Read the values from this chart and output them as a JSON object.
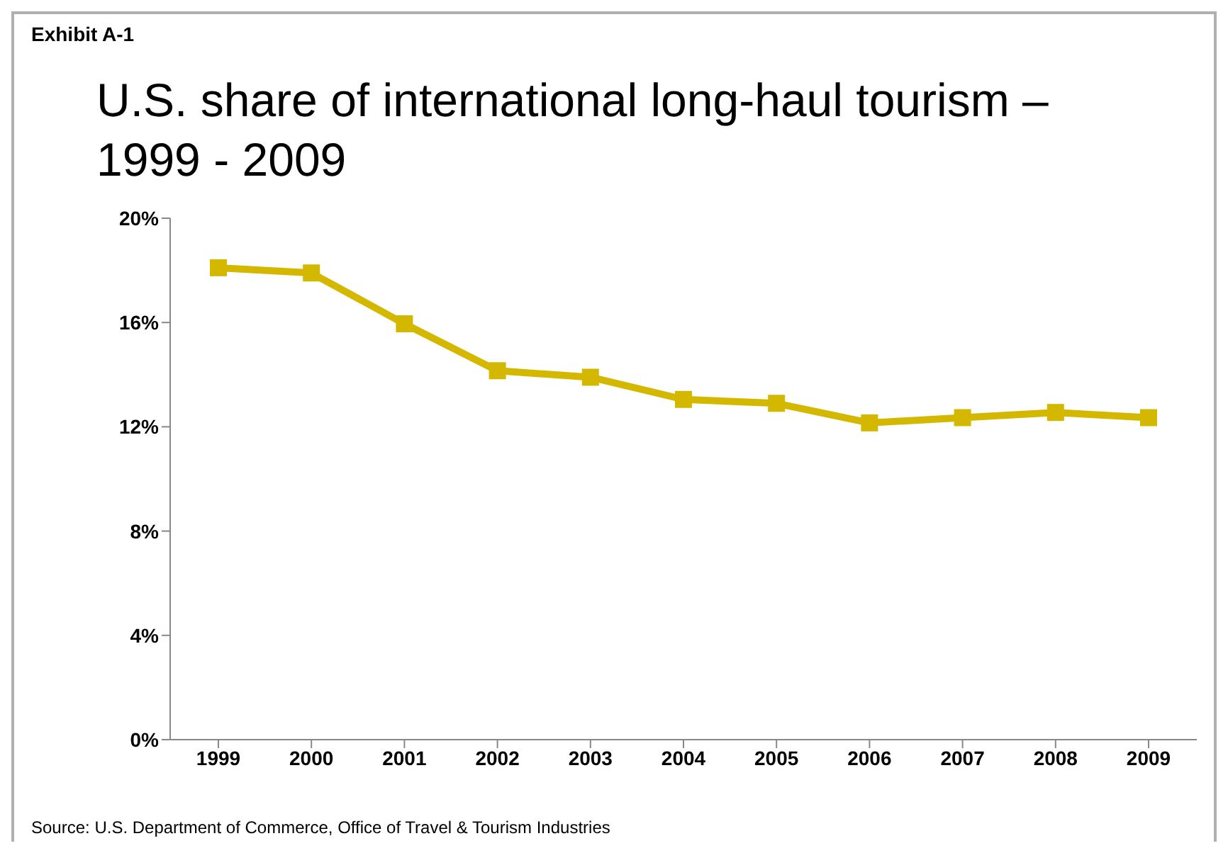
{
  "chart_data": {
    "type": "line",
    "title": "U.S. share of international long-haul tourism – 1999 - 2009",
    "annotations": [
      "Exhibit A-1",
      "Source:  U.S. Department of Commerce, Office of Travel & Tourism Industries"
    ],
    "categories": [
      "1999",
      "2000",
      "2001",
      "2002",
      "2003",
      "2004",
      "2005",
      "2006",
      "2007",
      "2008",
      "2009"
    ],
    "series": [
      {
        "color": "#d4b800",
        "values": [
          18.1,
          17.9,
          15.95,
          14.15,
          13.9,
          13.05,
          12.9,
          12.15,
          12.35,
          12.55,
          12.35
        ]
      }
    ],
    "ylim": [
      0,
      20
    ],
    "yticks": [
      {
        "value": 0,
        "label": "0%"
      },
      {
        "value": 4,
        "label": "4%"
      },
      {
        "value": 8,
        "label": "8%"
      },
      {
        "value": 12,
        "label": "12%"
      },
      {
        "value": 16,
        "label": "16%"
      },
      {
        "value": 20,
        "label": "20%"
      }
    ],
    "legend": false,
    "marker": "square",
    "line_style": "solid"
  }
}
